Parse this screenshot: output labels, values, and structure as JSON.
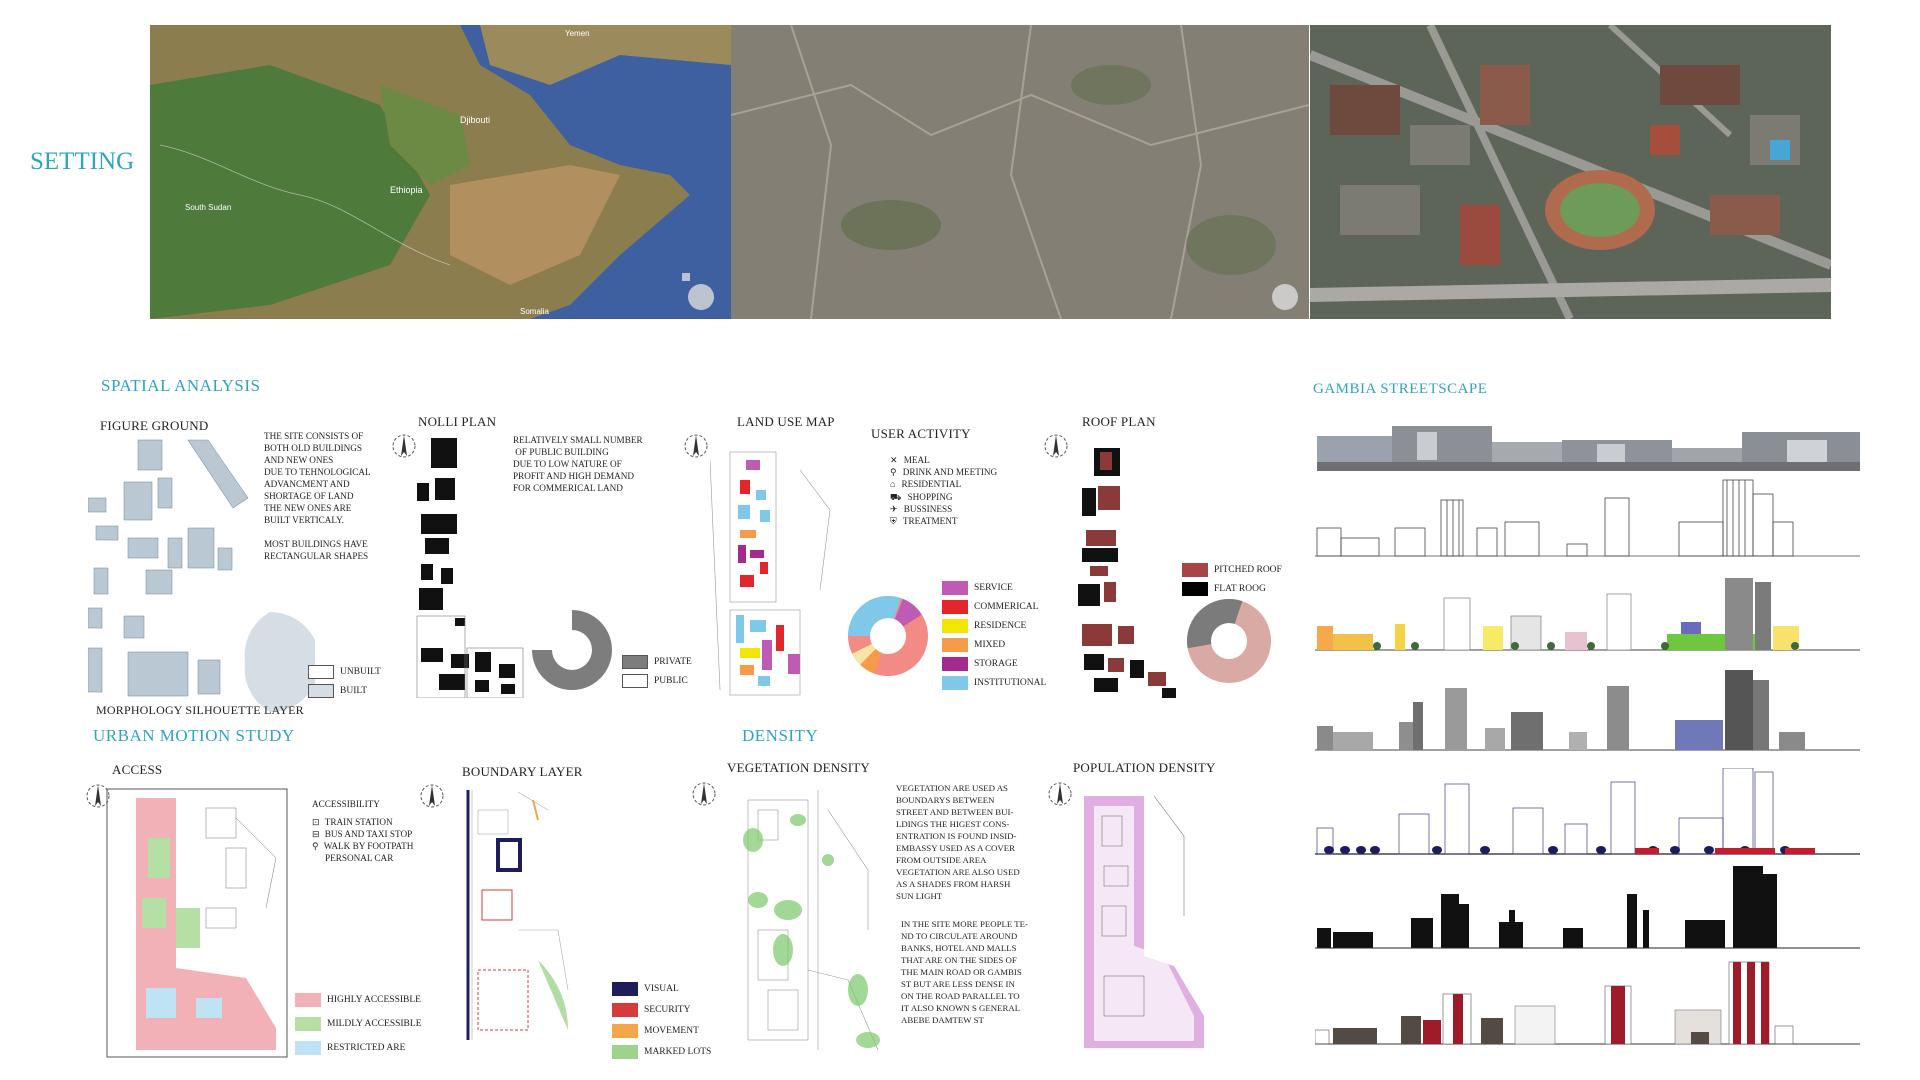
{
  "colors": {
    "accent": "#2fa3c4",
    "highly": "#f2b1b6",
    "mildly": "#b5dfa5",
    "restricted": "#bfe3f5",
    "visual": "#1d1d5e",
    "security": "#d63b3b",
    "movement": "#f5a54a",
    "marked": "#9ed38c",
    "service": "#c05bb4",
    "commercial": "#e3262c",
    "residence": "#f2e500",
    "mixed": "#f59b4a",
    "storage": "#a52a8f",
    "institutional": "#7fc8ea",
    "pitched": "#a94444",
    "flat": "#000000"
  },
  "setting": {
    "title": "SETTING"
  },
  "spatial": {
    "title": "SPATIAL ANALYSIS",
    "figure_ground": {
      "title": "FIGURE GROUND",
      "note": "THE SITE CONSISTS OF\nBOTH OLD BUILDINGS\nAND NEW ONES\nDUE TO TEHNOLOGICAL\nADVANCMENT AND\nSHORTAGE OF LAND\nTHE NEW ONES ARE\nBUILT VERTICALY.\n\nMOST BUILDINGS HAVE\nRECTANGULAR SHAPES",
      "legend": [
        "UNBUILT",
        "BUILT"
      ],
      "layer_label": "MORPHOLOGY SILHOUETTE LAYER"
    },
    "nolli": {
      "title": "NOLLI PLAN",
      "note": "RELATIVELY SMALL NUMBER\n OF PUBLIC BUILDING\nDUE TO LOW NATURE OF\nPROFIT AND HIGH DEMAND\nFOR COMMERICAL LAND",
      "legend": [
        "PRIVATE",
        "PUBLIC"
      ]
    },
    "land_use": {
      "title": "LAND USE MAP",
      "legend": [
        "SERVICE",
        "COMMERICAL",
        "RESIDENCE",
        "MIXED",
        "STORAGE",
        "INSTITUTIONAL"
      ]
    },
    "user_activity": {
      "title": "USER ACTIVITY",
      "items": [
        "MEAL",
        "DRINK AND MEETING",
        "RESIDENTIAL",
        "SHOPPING",
        "BUSSINESS",
        "TREATMENT"
      ],
      "icons": [
        "utensils-icon",
        "glass-icon",
        "home-icon",
        "cart-icon",
        "briefcase-icon",
        "hospital-icon"
      ]
    },
    "roof": {
      "title": "ROOF PLAN",
      "legend": [
        "PITCHED ROOF",
        "FLAT ROOG"
      ]
    }
  },
  "urban_motion": {
    "title": "URBAN MOTION STUDY",
    "access": {
      "title": "ACCESS",
      "heading": "ACCESSIBILITY",
      "items": [
        "TRAIN STATION",
        "BUS AND TAXI STOP",
        "WALK BY FOOTPATH",
        "PERSONAL CAR"
      ],
      "legend": [
        "HIGHLY ACCESSIBLE",
        "MILDLY ACCESSIBLE",
        "RESTRICTED ARE"
      ]
    },
    "boundary": {
      "title": "BOUNDARY LAYER",
      "legend": [
        "VISUAL",
        "SECURITY",
        "MOVEMENT",
        "MARKED LOTS"
      ]
    }
  },
  "density": {
    "title": "DENSITY",
    "vegetation": {
      "title": "VEGETATION DENSITY",
      "note": "VEGETATION ARE USED AS\nBOUNDARYS BETWEEN\nSTREET AND BETWEEN BUI-\nLDINGS THE HIGEST CONS-\nENTRATION IS FOUND INSID-\nEMBASSY USED AS A COVER\nFROM OUTSIDE AREA\nVEGETATION ARE ALSO USED\nAS A SHADES FROM HARSH\nSUN LIGHT",
      "note2": "IN THE SITE MORE PEOPLE TE-\nND TO CIRCULATE AROUND\nBANKS, HOTEL AND MALLS\nTHAT ARE ON THE SIDES OF\nTHE MAIN ROAD OR GAMBIS\nST BUT ARE LESS DENSE IN\nON THE ROAD PARALLEL TO\nIT ALSO KNOWN S GENERAL\nABEBE DAMTEW ST"
    },
    "population": {
      "title": "POPULATION DENSITY"
    }
  },
  "streetscape": {
    "title": "GAMBIA STREETSCAPE"
  },
  "maps": {
    "map1_labels": [
      "Djibouti",
      "Ethiopia",
      "South Sudan",
      "Somalia",
      "Yemen"
    ]
  }
}
